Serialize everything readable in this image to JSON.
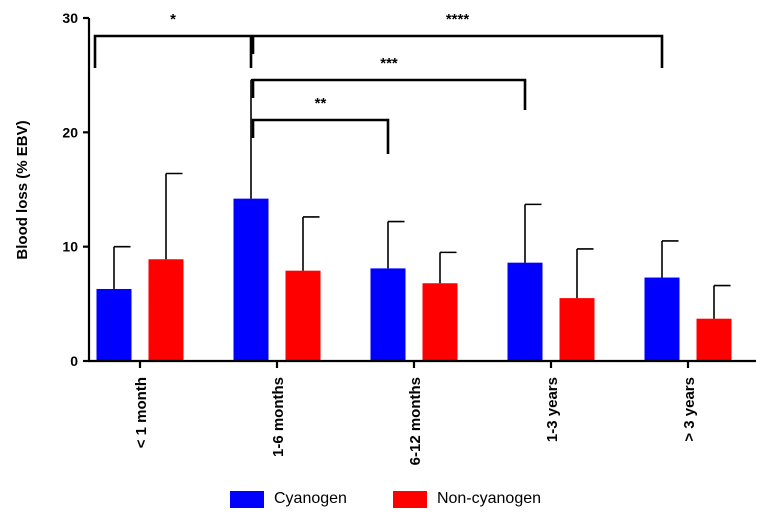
{
  "chart_data": {
    "type": "bar",
    "title": "",
    "xlabel": "",
    "ylabel": "Blood loss (% EBV)",
    "ylim": [
      0,
      30
    ],
    "yticks": [
      0,
      10,
      20,
      30
    ],
    "categories": [
      "< 1 month",
      "1-6 months",
      "6-12 months",
      "1-3 years",
      "> 3 years"
    ],
    "series": [
      {
        "name": "Cyanogen",
        "color": "#0000ff",
        "values": [
          6.3,
          14.2,
          8.1,
          8.6,
          7.3
        ],
        "error": [
          3.7,
          10.4,
          4.1,
          5.1,
          3.2
        ]
      },
      {
        "name": "Non-cyanogen",
        "color": "#ff0000",
        "values": [
          8.9,
          7.9,
          6.8,
          5.5,
          3.7
        ],
        "error": [
          7.5,
          4.7,
          2.7,
          4.3,
          2.9
        ]
      }
    ],
    "significance": [
      {
        "from": 0,
        "to": 1,
        "label": "*"
      },
      {
        "from": 1,
        "to": 4,
        "label": "****"
      },
      {
        "from": 1,
        "to": 3,
        "label": "***"
      },
      {
        "from": 1,
        "to": 2,
        "label": "**"
      }
    ],
    "legend_position": "bottom",
    "grid": false
  }
}
